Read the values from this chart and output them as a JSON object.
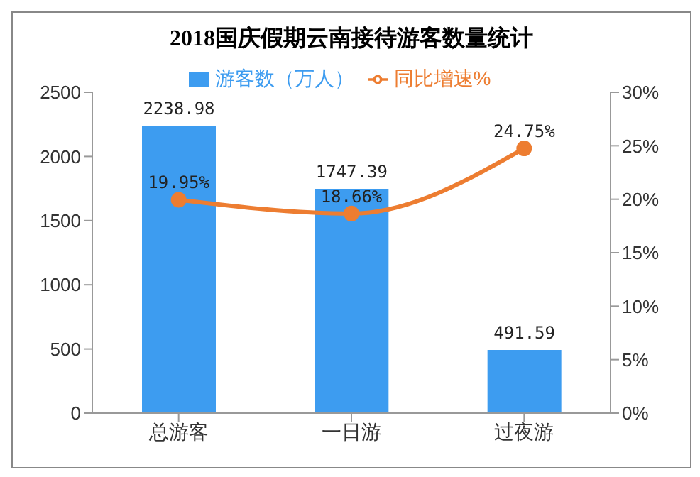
{
  "chart_data": {
    "type": "bar",
    "title": "2018国庆假期云南接待游客数量统计",
    "categories": [
      "总游客",
      "一日游",
      "过夜游"
    ],
    "series": [
      {
        "name": "游客数（万人）",
        "color": "#3d9cf0",
        "values": [
          2238.98,
          1747.39,
          491.59
        ],
        "value_labels": [
          "2238.98",
          "1747.39",
          "491.59"
        ]
      },
      {
        "name": "同比增速%",
        "type": "line",
        "axis": "y2",
        "color": "#ed7d31",
        "values": [
          19.95,
          18.66,
          24.75
        ],
        "value_labels": [
          "19.95%",
          "18.66%",
          "24.75%"
        ],
        "marker": "circle"
      }
    ],
    "ylim": [
      0,
      2500
    ],
    "yticks": [
      0,
      500,
      1000,
      1500,
      2000,
      2500
    ],
    "y2lim": [
      0,
      30
    ],
    "y2ticks": [
      {
        "value": 0,
        "label": "0%"
      },
      {
        "value": 5,
        "label": "5%"
      },
      {
        "value": 10,
        "label": "10%"
      },
      {
        "value": 15,
        "label": "15%"
      },
      {
        "value": 20,
        "label": "20%"
      },
      {
        "value": 25,
        "label": "25%"
      },
      {
        "value": 30,
        "label": "30%"
      }
    ],
    "legend": "top"
  }
}
